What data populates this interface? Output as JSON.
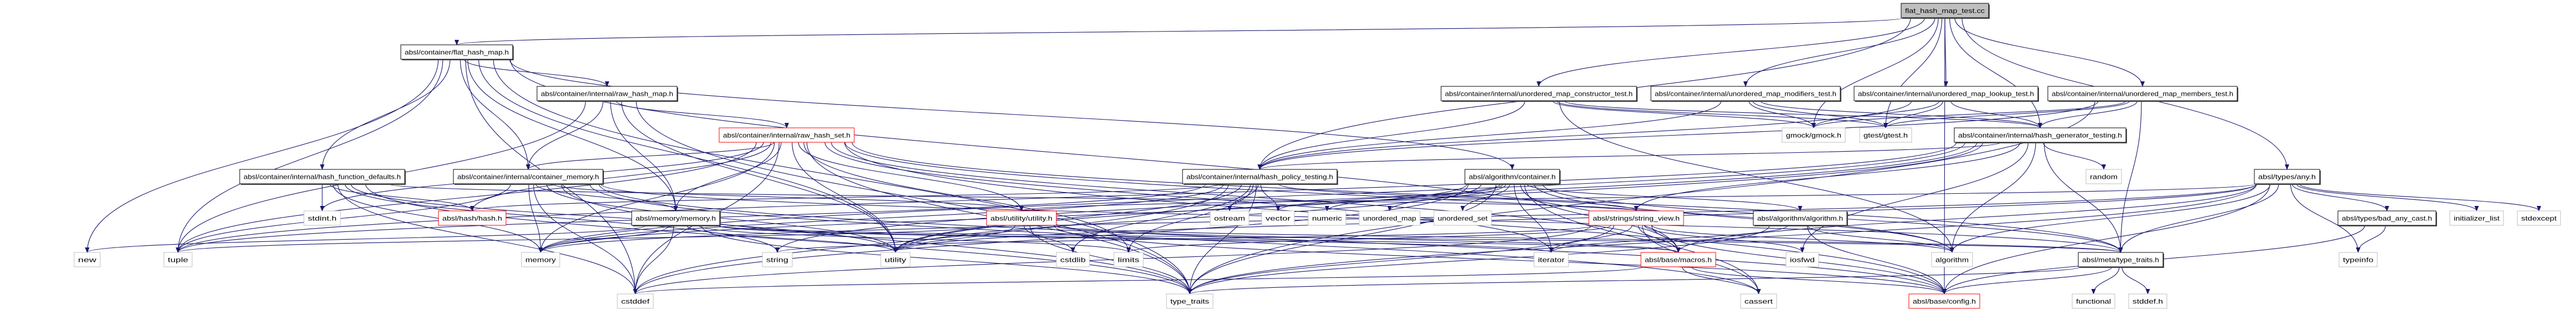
{
  "graph": {
    "colors": {
      "edge": "#191970",
      "root_fill": "#bfbfbf",
      "system_border": "#bfbfbf",
      "undocumented_border": "#ff0000",
      "node_border": "#000000"
    },
    "nodes": [
      {
        "id": "root",
        "label": "flat_hash_map_test.cc",
        "style": "root"
      },
      {
        "id": "flat_hash_map",
        "label": "absl/container/flat_hash_map.h",
        "style": "normal"
      },
      {
        "id": "raw_hash_map",
        "label": "absl/container/internal/raw_hash_map.h",
        "style": "normal"
      },
      {
        "id": "raw_hash_set",
        "label": "absl/container/internal/raw_hash_set.h",
        "style": "red"
      },
      {
        "id": "hash_function_defaults",
        "label": "absl/container/internal/hash_function_defaults.h",
        "style": "normal"
      },
      {
        "id": "container_memory",
        "label": "absl/container/internal/container_memory.h",
        "style": "normal"
      },
      {
        "id": "stdint",
        "label": "stdint.h",
        "style": "system"
      },
      {
        "id": "hash",
        "label": "absl/hash/hash.h",
        "style": "red"
      },
      {
        "id": "memory_h",
        "label": "absl/memory/memory.h",
        "style": "normal"
      },
      {
        "id": "new",
        "label": "new",
        "style": "system"
      },
      {
        "id": "tuple",
        "label": "tuple",
        "style": "system"
      },
      {
        "id": "memory",
        "label": "memory",
        "style": "system"
      },
      {
        "id": "cstddef",
        "label": "cstddef",
        "style": "system"
      },
      {
        "id": "utility_h",
        "label": "absl/utility/utility.h",
        "style": "red"
      },
      {
        "id": "string",
        "label": "string",
        "style": "system"
      },
      {
        "id": "utility",
        "label": "utility",
        "style": "system"
      },
      {
        "id": "cstdlib",
        "label": "cstdlib",
        "style": "system"
      },
      {
        "id": "limits",
        "label": "limits",
        "style": "system"
      },
      {
        "id": "type_traits",
        "label": "type_traits",
        "style": "system"
      },
      {
        "id": "hash_policy_testing",
        "label": "absl/container/internal/hash_policy_testing.h",
        "style": "normal"
      },
      {
        "id": "ostream",
        "label": "ostream",
        "style": "system"
      },
      {
        "id": "vector",
        "label": "vector",
        "style": "system"
      },
      {
        "id": "numeric",
        "label": "numeric",
        "style": "system"
      },
      {
        "id": "constructor_test",
        "label": "absl/container/internal/unordered_map_constructor_test.h",
        "style": "normal"
      },
      {
        "id": "modifiers_test",
        "label": "absl/container/internal/unordered_map_modifiers_test.h",
        "style": "normal"
      },
      {
        "id": "lookup_test",
        "label": "absl/container/internal/unordered_map_lookup_test.h",
        "style": "normal"
      },
      {
        "id": "members_test",
        "label": "absl/container/internal/unordered_map_members_test.h",
        "style": "normal"
      },
      {
        "id": "gmock",
        "label": "gmock/gmock.h",
        "style": "system"
      },
      {
        "id": "gtest",
        "label": "gtest/gtest.h",
        "style": "system"
      },
      {
        "id": "hash_generator_testing",
        "label": "absl/container/internal/hash_generator_testing.h",
        "style": "normal"
      },
      {
        "id": "algo_container",
        "label": "absl/algorithm/container.h",
        "style": "normal"
      },
      {
        "id": "unordered_map",
        "label": "unordered_map",
        "style": "system"
      },
      {
        "id": "unordered_set",
        "label": "unordered_set",
        "style": "system"
      },
      {
        "id": "string_view",
        "label": "absl/strings/string_view.h",
        "style": "red"
      },
      {
        "id": "algo_algorithm",
        "label": "absl/algorithm/algorithm.h",
        "style": "normal"
      },
      {
        "id": "iterator",
        "label": "iterator",
        "style": "system"
      },
      {
        "id": "macros",
        "label": "absl/base/macros.h",
        "style": "red"
      },
      {
        "id": "iosfwd",
        "label": "iosfwd",
        "style": "system"
      },
      {
        "id": "algorithm",
        "label": "algorithm",
        "style": "system"
      },
      {
        "id": "cassert",
        "label": "cassert",
        "style": "system"
      },
      {
        "id": "config",
        "label": "absl/base/config.h",
        "style": "red"
      },
      {
        "id": "random",
        "label": "random",
        "style": "system"
      },
      {
        "id": "any",
        "label": "absl/types/any.h",
        "style": "normal"
      },
      {
        "id": "bad_any_cast",
        "label": "absl/types/bad_any_cast.h",
        "style": "normal"
      },
      {
        "id": "initializer_list",
        "label": "initializer_list",
        "style": "system"
      },
      {
        "id": "stdexcept",
        "label": "stdexcept",
        "style": "system"
      },
      {
        "id": "meta_type_traits",
        "label": "absl/meta/type_traits.h",
        "style": "normal"
      },
      {
        "id": "typeinfo",
        "label": "typeinfo",
        "style": "system"
      },
      {
        "id": "functional",
        "label": "functional",
        "style": "system"
      },
      {
        "id": "stddef",
        "label": "stddef.h",
        "style": "system"
      }
    ],
    "edges": [
      [
        "root",
        "flat_hash_map"
      ],
      [
        "root",
        "constructor_test"
      ],
      [
        "root",
        "modifiers_test"
      ],
      [
        "root",
        "lookup_test"
      ],
      [
        "root",
        "members_test"
      ],
      [
        "root",
        "hash_generator_testing"
      ],
      [
        "root",
        "hash_policy_testing"
      ],
      [
        "root",
        "any"
      ],
      [
        "root",
        "config"
      ],
      [
        "root",
        "gmock"
      ],
      [
        "root",
        "gtest"
      ],
      [
        "flat_hash_map",
        "raw_hash_map"
      ],
      [
        "flat_hash_map",
        "hash_function_defaults"
      ],
      [
        "flat_hash_map",
        "container_memory"
      ],
      [
        "flat_hash_map",
        "memory_h"
      ],
      [
        "flat_hash_map",
        "new"
      ],
      [
        "flat_hash_map",
        "tuple"
      ],
      [
        "flat_hash_map",
        "cstddef"
      ],
      [
        "flat_hash_map",
        "type_traits"
      ],
      [
        "flat_hash_map",
        "utility"
      ],
      [
        "flat_hash_map",
        "algo_container"
      ],
      [
        "flat_hash_map",
        "macros"
      ],
      [
        "raw_hash_map",
        "raw_hash_set"
      ],
      [
        "raw_hash_map",
        "container_memory"
      ],
      [
        "raw_hash_map",
        "tuple"
      ],
      [
        "raw_hash_map",
        "utility"
      ],
      [
        "raw_hash_map",
        "type_traits"
      ],
      [
        "raw_hash_map",
        "memory_h"
      ],
      [
        "raw_hash_set",
        "container_memory"
      ],
      [
        "raw_hash_set",
        "memory_h"
      ],
      [
        "raw_hash_set",
        "utility_h"
      ],
      [
        "raw_hash_set",
        "hash"
      ],
      [
        "raw_hash_set",
        "limits"
      ],
      [
        "raw_hash_set",
        "utility"
      ],
      [
        "raw_hash_set",
        "type_traits"
      ],
      [
        "raw_hash_set",
        "cstddef"
      ],
      [
        "raw_hash_set",
        "tuple"
      ],
      [
        "raw_hash_set",
        "memory"
      ],
      [
        "raw_hash_set",
        "algorithm"
      ],
      [
        "raw_hash_set",
        "iterator"
      ],
      [
        "raw_hash_set",
        "stdint"
      ],
      [
        "raw_hash_set",
        "meta_type_traits"
      ],
      [
        "raw_hash_set",
        "macros"
      ],
      [
        "raw_hash_set",
        "config"
      ],
      [
        "hash_function_defaults",
        "stdint"
      ],
      [
        "hash_function_defaults",
        "hash"
      ],
      [
        "hash_function_defaults",
        "string_view"
      ],
      [
        "hash_function_defaults",
        "memory"
      ],
      [
        "hash_function_defaults",
        "type_traits"
      ],
      [
        "hash_function_defaults",
        "cstddef"
      ],
      [
        "hash_function_defaults",
        "utility"
      ],
      [
        "hash_function_defaults",
        "string"
      ],
      [
        "container_memory",
        "memory_h"
      ],
      [
        "container_memory",
        "utility_h"
      ],
      [
        "container_memory",
        "tuple"
      ],
      [
        "container_memory",
        "memory"
      ],
      [
        "container_memory",
        "utility"
      ],
      [
        "container_memory",
        "type_traits"
      ],
      [
        "container_memory",
        "cstddef"
      ],
      [
        "container_memory",
        "cassert"
      ],
      [
        "container_memory",
        "meta_type_traits"
      ],
      [
        "container_memory",
        "config"
      ],
      [
        "memory_h",
        "new"
      ],
      [
        "memory_h",
        "memory"
      ],
      [
        "memory_h",
        "cstddef"
      ],
      [
        "memory_h",
        "type_traits"
      ],
      [
        "memory_h",
        "utility"
      ],
      [
        "memory_h",
        "limits"
      ],
      [
        "memory_h",
        "iterator"
      ],
      [
        "memory_h",
        "meta_type_traits"
      ],
      [
        "memory_h",
        "macros"
      ],
      [
        "utility_h",
        "utility"
      ],
      [
        "utility_h",
        "cstdlib"
      ],
      [
        "utility_h",
        "tuple"
      ],
      [
        "utility_h",
        "type_traits"
      ],
      [
        "utility_h",
        "config"
      ],
      [
        "utility_h",
        "macros"
      ],
      [
        "utility_h",
        "meta_type_traits"
      ],
      [
        "hash_policy_testing",
        "ostream"
      ],
      [
        "hash_policy_testing",
        "vector"
      ],
      [
        "hash_policy_testing",
        "cstdlib"
      ],
      [
        "hash_policy_testing",
        "limits"
      ],
      [
        "hash_policy_testing",
        "utility"
      ],
      [
        "hash_policy_testing",
        "type_traits"
      ],
      [
        "hash_policy_testing",
        "memory"
      ],
      [
        "hash_policy_testing",
        "hash"
      ],
      [
        "hash_policy_testing",
        "string_view"
      ],
      [
        "hash_policy_testing",
        "cstddef"
      ],
      [
        "hash_policy_testing",
        "tuple"
      ],
      [
        "algo_container",
        "algo_algorithm"
      ],
      [
        "algo_container",
        "numeric"
      ],
      [
        "algo_container",
        "unordered_map"
      ],
      [
        "algo_container",
        "unordered_set"
      ],
      [
        "algo_container",
        "iterator"
      ],
      [
        "algo_container",
        "vector"
      ],
      [
        "algo_container",
        "memory"
      ],
      [
        "algo_container",
        "utility"
      ],
      [
        "algo_container",
        "type_traits"
      ],
      [
        "algo_container",
        "cassert"
      ],
      [
        "algo_container",
        "macros"
      ],
      [
        "algo_container",
        "meta_type_traits"
      ],
      [
        "algo_container",
        "algorithm"
      ],
      [
        "algo_container",
        "cstddef"
      ],
      [
        "string_view",
        "string"
      ],
      [
        "string_view",
        "iterator"
      ],
      [
        "string_view",
        "macros"
      ],
      [
        "string_view",
        "iosfwd"
      ],
      [
        "string_view",
        "algorithm"
      ],
      [
        "string_view",
        "cassert"
      ],
      [
        "string_view",
        "cstddef"
      ],
      [
        "string_view",
        "limits"
      ],
      [
        "string_view",
        "config"
      ],
      [
        "string_view",
        "type_traits"
      ],
      [
        "algo_algorithm",
        "algorithm"
      ],
      [
        "algo_algorithm",
        "iterator"
      ],
      [
        "algo_algorithm",
        "type_traits"
      ],
      [
        "algo_algorithm",
        "config"
      ],
      [
        "macros",
        "cassert"
      ],
      [
        "macros",
        "cstddef"
      ],
      [
        "macros",
        "config"
      ],
      [
        "meta_type_traits",
        "functional"
      ],
      [
        "meta_type_traits",
        "stddef"
      ],
      [
        "meta_type_traits",
        "type_traits"
      ],
      [
        "meta_type_traits",
        "config"
      ],
      [
        "any",
        "bad_any_cast"
      ],
      [
        "any",
        "initializer_list"
      ],
      [
        "any",
        "stdexcept"
      ],
      [
        "any",
        "typeinfo"
      ],
      [
        "any",
        "meta_type_traits"
      ],
      [
        "any",
        "utility"
      ],
      [
        "any",
        "memory"
      ],
      [
        "any",
        "type_traits"
      ],
      [
        "any",
        "config"
      ],
      [
        "any",
        "macros"
      ],
      [
        "any",
        "algorithm"
      ],
      [
        "any",
        "utility_h"
      ],
      [
        "bad_any_cast",
        "typeinfo"
      ],
      [
        "bad_any_cast",
        "config"
      ],
      [
        "hash_generator_testing",
        "random"
      ],
      [
        "hash_generator_testing",
        "hash_policy_testing"
      ],
      [
        "hash_generator_testing",
        "meta_type_traits"
      ],
      [
        "hash_generator_testing",
        "algorithm"
      ],
      [
        "hash_generator_testing",
        "string_view"
      ],
      [
        "hash_generator_testing",
        "memory"
      ],
      [
        "hash_generator_testing",
        "utility"
      ],
      [
        "hash_generator_testing",
        "tuple"
      ],
      [
        "hash_generator_testing",
        "iosfwd"
      ],
      [
        "hash_generator_testing",
        "string"
      ],
      [
        "constructor_test",
        "gmock"
      ],
      [
        "constructor_test",
        "gtest"
      ],
      [
        "constructor_test",
        "hash_generator_testing"
      ],
      [
        "constructor_test",
        "hash_policy_testing"
      ],
      [
        "constructor_test",
        "algorithm"
      ],
      [
        "modifiers_test",
        "gmock"
      ],
      [
        "modifiers_test",
        "gtest"
      ],
      [
        "modifiers_test",
        "hash_generator_testing"
      ],
      [
        "modifiers_test",
        "hash_policy_testing"
      ],
      [
        "lookup_test",
        "gmock"
      ],
      [
        "lookup_test",
        "gtest"
      ],
      [
        "lookup_test",
        "hash_generator_testing"
      ],
      [
        "lookup_test",
        "hash_policy_testing"
      ],
      [
        "members_test",
        "gmock"
      ],
      [
        "members_test",
        "gtest"
      ],
      [
        "members_test",
        "hash_generator_testing"
      ],
      [
        "members_test",
        "hash_policy_testing"
      ],
      [
        "members_test",
        "meta_type_traits"
      ],
      [
        "members_test",
        "type_traits"
      ]
    ]
  }
}
